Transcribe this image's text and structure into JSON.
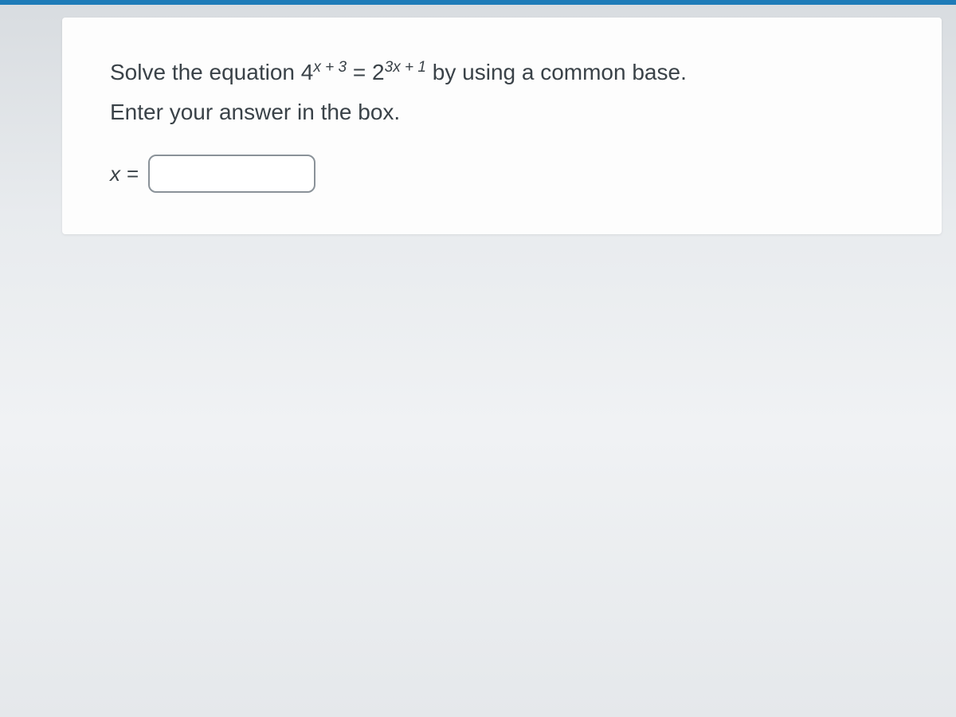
{
  "colors": {
    "top_bar": "#1e7bb8",
    "card_bg": "#fdfdfd",
    "page_bg_top": "#d8dce0",
    "page_bg_bottom": "#e5e8eb",
    "text": "#3a4248",
    "input_border": "#8a9299"
  },
  "question": {
    "prefix": "Solve the equation ",
    "lhs_base": "4",
    "lhs_exp_var": "x",
    "lhs_exp_op": " + 3",
    "equals": " = ",
    "rhs_base": "2",
    "rhs_exp_coef": "3",
    "rhs_exp_var": "x",
    "rhs_exp_op": " + 1",
    "suffix": " by using a common base."
  },
  "instruction": "Enter your answer in the box.",
  "answer": {
    "variable": "x",
    "equals": "=",
    "value": "",
    "placeholder": ""
  },
  "typography": {
    "question_fontsize": 28,
    "label_fontsize": 26,
    "input_width": 210,
    "input_height": 48,
    "input_border_radius": 10
  }
}
